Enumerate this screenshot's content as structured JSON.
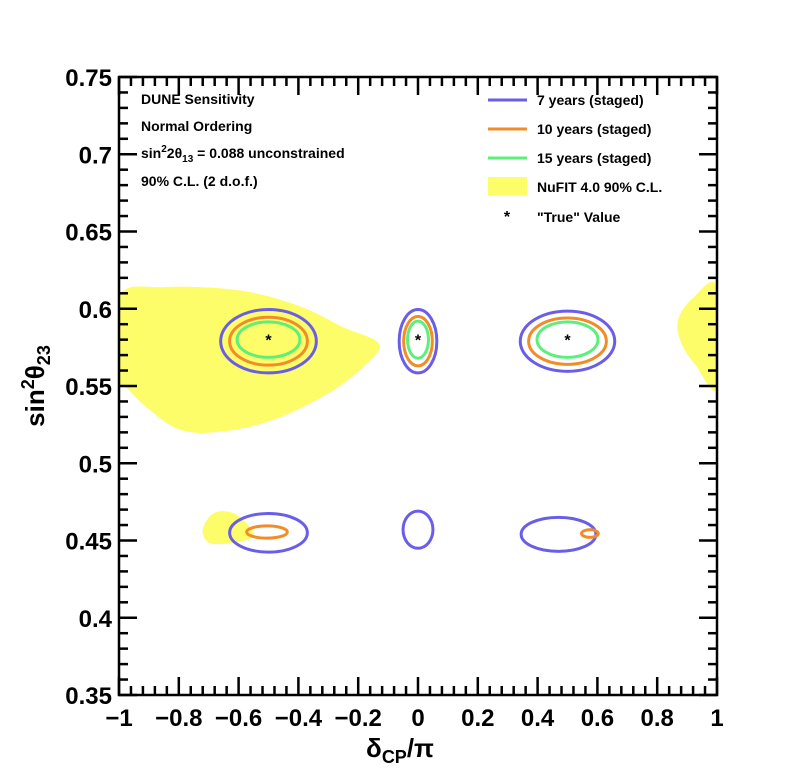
{
  "chart_data": {
    "type": "contour",
    "xlabel": {
      "main": "δ",
      "sub": "CP",
      "suffix": "/π"
    },
    "ylabel": {
      "main": "sin",
      "sup": "2",
      "mid": "θ",
      "sub": "23"
    },
    "xlim": [
      -1,
      1
    ],
    "ylim": [
      0.35,
      0.75
    ],
    "x_ticks": [
      "−1",
      "−0.8",
      "−0.6",
      "−0.4",
      "−0.2",
      "0",
      "0.2",
      "0.4",
      "0.6",
      "0.8",
      "1"
    ],
    "x_tick_values": [
      -1,
      -0.8,
      -0.6,
      -0.4,
      -0.2,
      0,
      0.2,
      0.4,
      0.6,
      0.8,
      1
    ],
    "y_ticks": [
      "0.35",
      "0.4",
      "0.45",
      "0.5",
      "0.55",
      "0.6",
      "0.65",
      "0.7",
      "0.75"
    ],
    "y_tick_values": [
      0.35,
      0.4,
      0.45,
      0.5,
      0.55,
      0.6,
      0.65,
      0.7,
      0.75
    ],
    "annotations": [
      {
        "text": "DUNE Sensitivity"
      },
      {
        "text": "Normal Ordering"
      },
      {
        "text_parts": [
          "sin",
          "2",
          "2θ",
          "13",
          " = 0.088 unconstrained"
        ]
      },
      {
        "text": "90% C.L. (2 d.o.f.)"
      }
    ],
    "legend": [
      {
        "label": "7 years (staged)",
        "color": "#6a5ee8",
        "style": "line"
      },
      {
        "label": "10 years (staged)",
        "color": "#f28c28",
        "style": "line"
      },
      {
        "label": "15 years (staged)",
        "color": "#5cf07a",
        "style": "line"
      },
      {
        "label": "NuFIT 4.0 90% C.L.",
        "color": "#fdfd6a",
        "style": "fill"
      },
      {
        "label": "\"True\" Value",
        "color": "#000000",
        "style": "marker"
      }
    ],
    "legend_position": "top-right",
    "true_values": [
      {
        "x": -0.5,
        "y": 0.58
      },
      {
        "x": 0.0,
        "y": 0.58
      },
      {
        "x": 0.5,
        "y": 0.58
      }
    ],
    "nufit_regions": [
      [
        [
          -1.0,
          0.608
        ],
        [
          -0.85,
          0.614
        ],
        [
          -0.6,
          0.612
        ],
        [
          -0.4,
          0.602
        ],
        [
          -0.25,
          0.588
        ],
        [
          -0.13,
          0.577
        ],
        [
          -0.19,
          0.561
        ],
        [
          -0.32,
          0.543
        ],
        [
          -0.5,
          0.527
        ],
        [
          -0.68,
          0.52
        ],
        [
          -0.8,
          0.522
        ],
        [
          -0.9,
          0.535
        ],
        [
          -0.97,
          0.548
        ],
        [
          -1.0,
          0.556
        ]
      ],
      [
        [
          -0.72,
          0.457
        ],
        [
          -0.68,
          0.468
        ],
        [
          -0.61,
          0.467
        ],
        [
          -0.55,
          0.455
        ],
        [
          -0.58,
          0.45
        ],
        [
          -0.69,
          0.448
        ]
      ],
      [
        [
          1.0,
          0.614
        ],
        [
          0.92,
          0.607
        ],
        [
          0.87,
          0.593
        ],
        [
          0.88,
          0.578
        ],
        [
          0.93,
          0.563
        ],
        [
          1.0,
          0.549
        ]
      ]
    ],
    "series": [
      {
        "name": "7 years (staged)",
        "color": "#6a5ee8",
        "contours": [
          {
            "cx": -0.5,
            "cy": 0.579,
            "rx": 0.16,
            "ry": 0.0205
          },
          {
            "cx": 0.0,
            "cy": 0.579,
            "rx": 0.063,
            "ry": 0.0205
          },
          {
            "cx": 0.5,
            "cy": 0.579,
            "rx": 0.158,
            "ry": 0.0195
          },
          {
            "cx": -0.5,
            "cy": 0.455,
            "rx": 0.13,
            "ry": 0.0125
          },
          {
            "cx": 0.0,
            "cy": 0.457,
            "rx": 0.05,
            "ry": 0.012
          },
          {
            "cx": 0.47,
            "cy": 0.454,
            "rx": 0.125,
            "ry": 0.011
          }
        ]
      },
      {
        "name": "10 years (staged)",
        "color": "#f28c28",
        "contours": [
          {
            "cx": -0.5,
            "cy": 0.579,
            "rx": 0.13,
            "ry": 0.0155
          },
          {
            "cx": 0.0,
            "cy": 0.579,
            "rx": 0.048,
            "ry": 0.016
          },
          {
            "cx": 0.5,
            "cy": 0.579,
            "rx": 0.13,
            "ry": 0.015
          },
          {
            "cx": -0.505,
            "cy": 0.4555,
            "rx": 0.068,
            "ry": 0.004
          },
          {
            "cx": 0.575,
            "cy": 0.4545,
            "rx": 0.028,
            "ry": 0.0025
          }
        ]
      },
      {
        "name": "15 years (staged)",
        "color": "#5cf07a",
        "contours": [
          {
            "cx": -0.5,
            "cy": 0.58,
            "rx": 0.105,
            "ry": 0.0115
          },
          {
            "cx": 0.0,
            "cy": 0.58,
            "rx": 0.035,
            "ry": 0.012
          },
          {
            "cx": 0.5,
            "cy": 0.58,
            "rx": 0.102,
            "ry": 0.0115
          }
        ]
      }
    ]
  }
}
